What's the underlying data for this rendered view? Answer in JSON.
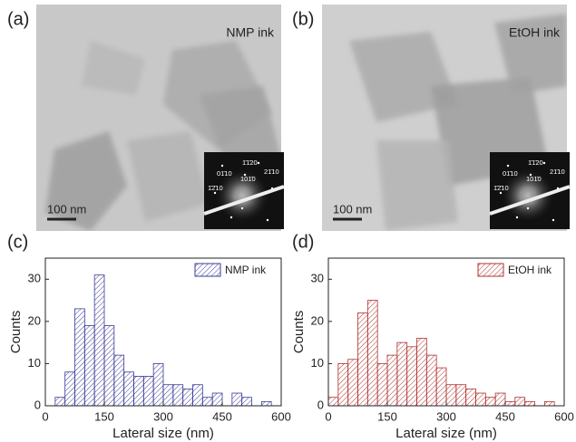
{
  "images": [
    {
      "panel_label": "(a)",
      "caption": "NMP ink",
      "scale_bar": "100 nm",
      "diffraction_labels": [
        "1̄1̄20",
        "01̄10",
        "101̄0",
        "21̄10",
        "1̄2̄10"
      ]
    },
    {
      "panel_label": "(b)",
      "caption": "EtOH ink",
      "scale_bar": "100 nm",
      "diffraction_labels": [
        "1̄1̄20",
        "01̄10",
        "101̄0",
        "21̄10",
        "1̄2̄10"
      ]
    }
  ],
  "chart_data": [
    {
      "type": "histogram",
      "panel_label": "(c)",
      "xlabel": "Lateral size (nm)",
      "ylabel": "Counts",
      "bins": [
        25,
        50,
        75,
        100,
        125,
        150,
        175,
        200,
        225,
        250,
        275,
        300,
        325,
        350,
        375,
        400,
        425,
        450,
        475,
        500,
        525,
        550,
        575
      ],
      "series": [
        {
          "name": "NMP ink",
          "color": "#3a3a9a",
          "values": [
            2,
            8,
            23,
            19,
            31,
            19,
            12,
            8,
            7,
            7,
            10,
            5,
            5,
            4,
            5,
            2,
            3,
            0,
            3,
            2,
            0,
            1
          ]
        }
      ],
      "xlim": [
        0,
        600
      ],
      "xticks": [
        0,
        150,
        300,
        450,
        600
      ],
      "ylim": [
        0,
        35
      ],
      "yticks": [
        0,
        10,
        20,
        30
      ],
      "legend": "upper right"
    },
    {
      "type": "histogram",
      "panel_label": "(d)",
      "xlabel": "Lateral size (nm)",
      "ylabel": "Counts",
      "bins": [
        0,
        25,
        50,
        75,
        100,
        125,
        150,
        175,
        200,
        225,
        250,
        275,
        300,
        325,
        350,
        375,
        400,
        425,
        450,
        475,
        500,
        525,
        550,
        575
      ],
      "series": [
        {
          "name": "EtOH ink",
          "color": "#b03030",
          "values": [
            2,
            10,
            11,
            22,
            25,
            10,
            12,
            15,
            14,
            16,
            12,
            9,
            5,
            5,
            4,
            3,
            2,
            3,
            1,
            2,
            1,
            0,
            1
          ]
        }
      ],
      "xlim": [
        0,
        600
      ],
      "xticks": [
        0,
        150,
        300,
        450,
        600
      ],
      "ylim": [
        0,
        35
      ],
      "yticks": [
        0,
        10,
        20,
        30
      ],
      "legend": "upper right"
    }
  ]
}
